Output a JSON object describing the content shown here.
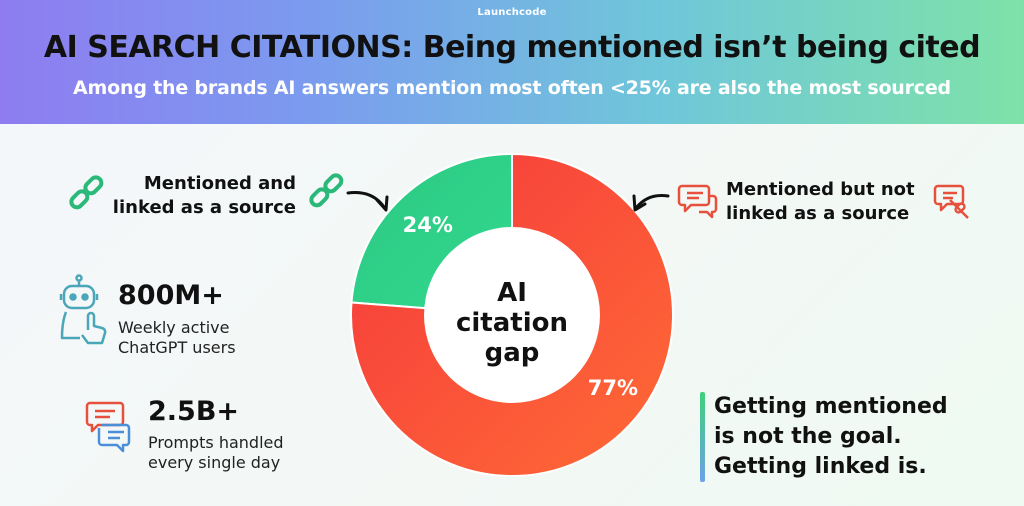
{
  "header": {
    "brand": "Launchcode",
    "title": "AI SEARCH CITATIONS: Being mentioned isn’t being cited",
    "subtitle": "Among the brands AI answers mention most often <25% are also the most sourced"
  },
  "chart_data": {
    "type": "pie",
    "center_label": [
      "AI",
      "citation",
      "gap"
    ],
    "slices": [
      {
        "name": "Mentioned and linked as a source",
        "value": 24,
        "label": "24%",
        "color": "#2ccf86"
      },
      {
        "name": "Mentioned but not linked as a source",
        "value": 77,
        "label": "77%",
        "color": "#f7463d"
      }
    ]
  },
  "labels": {
    "linked_line1": "Mentioned and",
    "linked_line2": "linked as a source",
    "not_linked_line1": "Mentioned but not",
    "not_linked_line2": "linked as a source"
  },
  "stats": [
    {
      "value": "800M+",
      "label_line1": "Weekly active",
      "label_line2": "ChatGPT users",
      "icon": "robot-icon"
    },
    {
      "value": "2.5B+",
      "label_line1": "Prompts handled",
      "label_line2": "every single day",
      "icon": "chat-bubbles-icon"
    }
  ],
  "takeaway": {
    "line1": "Getting mentioned",
    "line2": "is not the goal.",
    "line3": "Getting linked is."
  },
  "colors": {
    "green": "#2ccf86",
    "red": "#f7463d",
    "orange": "#ff6a36"
  }
}
